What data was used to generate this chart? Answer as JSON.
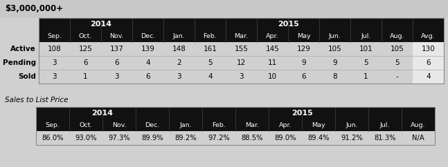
{
  "title": "$3,000,000+",
  "bg_color": "#d0d0d0",
  "title_bg": "#c8c8c8",
  "header_bg": "#111111",
  "avg_bg": "#e8e8e8",
  "row_label_color": "#000000",
  "months": [
    "Sep.",
    "Oct.",
    "Nov.",
    "Dec.",
    "Jan.",
    "Feb.",
    "Mar.",
    "Apr.",
    "May",
    "Jun.",
    "Jul.",
    "Aug.",
    "Avg."
  ],
  "rows": [
    {
      "label": "Active",
      "values": [
        "108",
        "125",
        "137",
        "139",
        "148",
        "161",
        "155",
        "145",
        "129",
        "105",
        "101",
        "105",
        "130"
      ]
    },
    {
      "label": "Pending",
      "values": [
        "3",
        "6",
        "6",
        "4",
        "2",
        "5",
        "12",
        "11",
        "9",
        "9",
        "5",
        "5",
        "6"
      ]
    },
    {
      "label": "Sold",
      "values": [
        "3",
        "1",
        "3",
        "6",
        "3",
        "4",
        "3",
        "10",
        "6",
        "8",
        "1",
        "-",
        "4"
      ]
    }
  ],
  "sales_title": "Sales to List Price",
  "sales_months": [
    "Sep.",
    "Oct.",
    "Nov.",
    "Dec.",
    "Jan.",
    "Feb.",
    "Mar.",
    "Apr.",
    "May",
    "Jun.",
    "Jul.",
    "Aug."
  ],
  "sales_values": [
    "86.0%",
    "93.0%",
    "97.3%",
    "89.9%",
    "89.2%",
    "97.2%",
    "88.5%",
    "89.0%",
    "89.4%",
    "91.2%",
    "81.3%",
    "N/A"
  ],
  "year2014_label": "2014",
  "year2015_label": "2015",
  "year2014_span": 4,
  "year2015_span": 8
}
